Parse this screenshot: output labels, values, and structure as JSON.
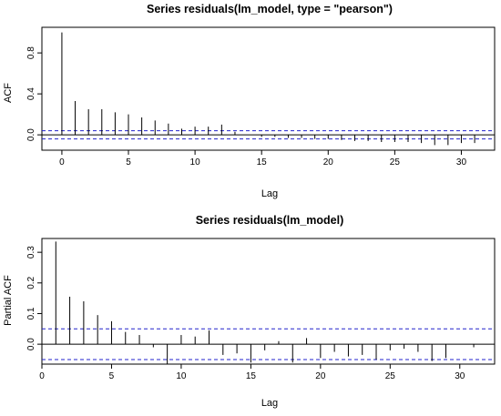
{
  "chart_data": [
    {
      "type": "bar",
      "title": "Series  residuals(lm_model, type = \"pearson\")",
      "xlabel": "Lag",
      "ylabel": "ACF",
      "xlim": [
        -1.5,
        32.5
      ],
      "ylim": [
        -0.15,
        1.05
      ],
      "xticks": [
        0,
        5,
        10,
        15,
        20,
        25,
        30
      ],
      "yticks": [
        0.0,
        0.4,
        0.8
      ],
      "ytick_labels": [
        "0.0",
        "0.4",
        "0.8"
      ],
      "ci": 0.04,
      "ci_color": "#2222cc",
      "x": [
        0,
        1,
        2,
        3,
        4,
        5,
        6,
        7,
        8,
        9,
        10,
        11,
        12,
        13,
        14,
        15,
        16,
        17,
        18,
        19,
        20,
        21,
        22,
        23,
        24,
        25,
        26,
        27,
        28,
        29,
        30,
        31
      ],
      "values": [
        1.0,
        0.33,
        0.25,
        0.25,
        0.22,
        0.2,
        0.17,
        0.14,
        0.11,
        0.06,
        0.08,
        0.08,
        0.1,
        0.03,
        0.0,
        -0.02,
        -0.02,
        -0.03,
        -0.03,
        -0.04,
        -0.04,
        -0.05,
        -0.06,
        -0.06,
        -0.07,
        -0.07,
        -0.07,
        -0.08,
        -0.1,
        -0.1,
        -0.08,
        -0.08
      ]
    },
    {
      "type": "bar",
      "title": "Series  residuals(lm_model)",
      "xlabel": "Lag",
      "ylabel": "Partial ACF",
      "xlim": [
        0.0,
        32.5
      ],
      "ylim": [
        -0.065,
        0.345
      ],
      "xticks": [
        0,
        5,
        10,
        15,
        20,
        25,
        30
      ],
      "yticks": [
        0.0,
        0.1,
        0.2,
        0.3
      ],
      "ytick_labels": [
        "0.0",
        "0.1",
        "0.2",
        "0.3"
      ],
      "ci": 0.05,
      "ci_color": "#2222cc",
      "x": [
        1,
        2,
        3,
        4,
        5,
        6,
        7,
        8,
        9,
        10,
        11,
        12,
        13,
        14,
        15,
        16,
        17,
        18,
        19,
        20,
        21,
        22,
        23,
        24,
        25,
        26,
        27,
        28,
        29,
        30,
        31
      ],
      "values": [
        0.335,
        0.155,
        0.14,
        0.095,
        0.075,
        0.04,
        0.03,
        -0.01,
        -0.065,
        0.03,
        0.025,
        0.045,
        -0.035,
        -0.03,
        -0.06,
        -0.02,
        0.01,
        -0.06,
        0.02,
        -0.045,
        -0.025,
        -0.04,
        -0.035,
        -0.05,
        -0.02,
        -0.015,
        -0.025,
        -0.055,
        -0.045,
        0.0,
        -0.01
      ]
    }
  ]
}
